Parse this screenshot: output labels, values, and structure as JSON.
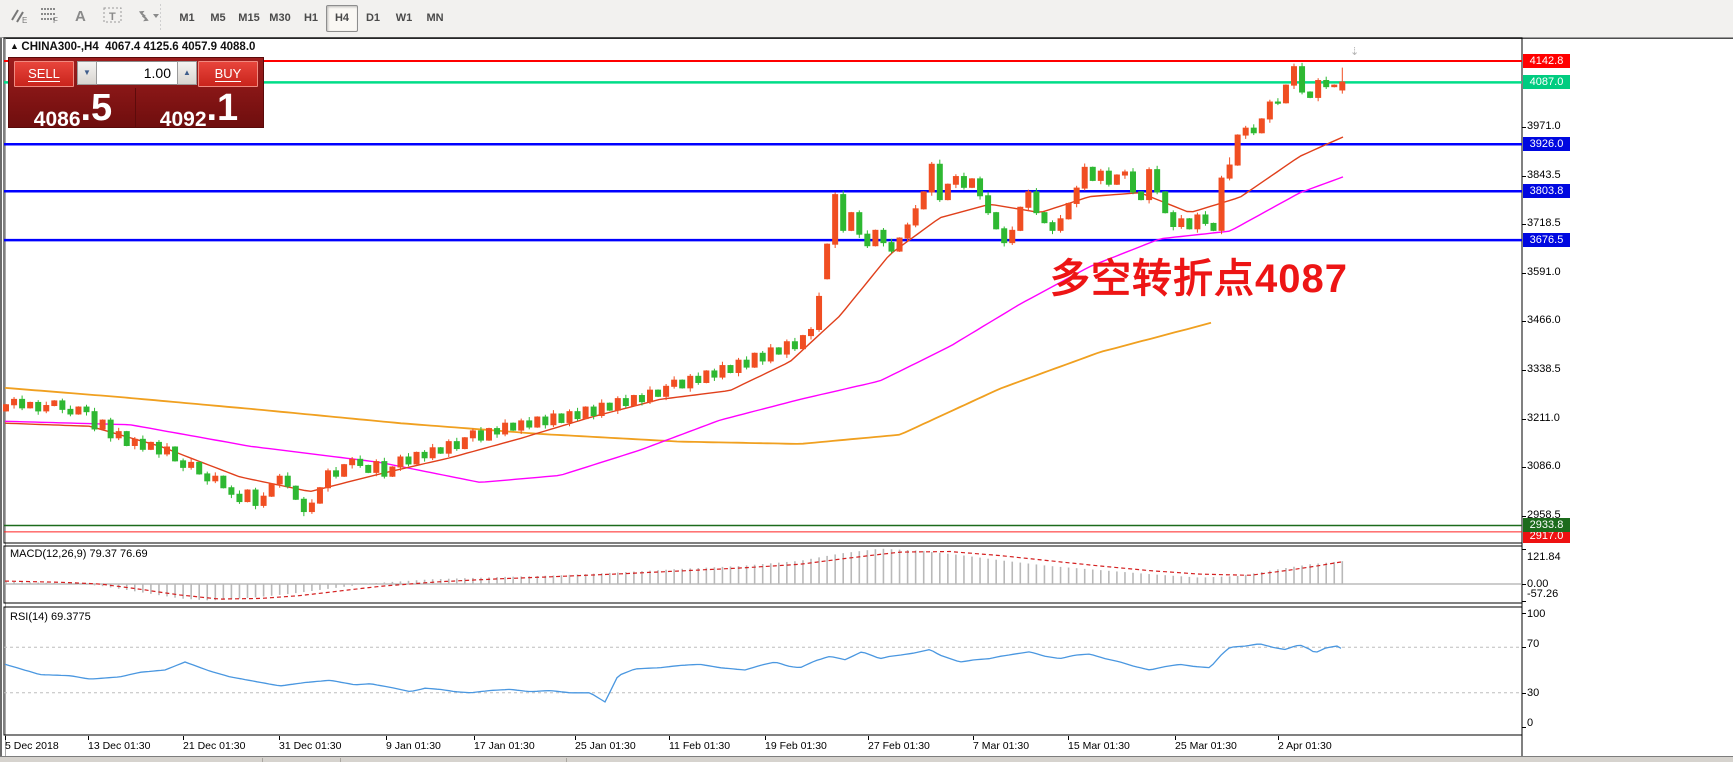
{
  "toolbar": {
    "icons": [
      {
        "name": "indicators-e-icon",
        "key": "ind"
      },
      {
        "name": "grid-f-icon",
        "key": "grid"
      },
      {
        "name": "text-label-icon",
        "key": "A"
      },
      {
        "name": "textbox-icon",
        "key": "T"
      },
      {
        "name": "cursor-arrows-icon",
        "key": "arr"
      }
    ],
    "timeframes": [
      {
        "label": "M1",
        "active": false
      },
      {
        "label": "M5",
        "active": false
      },
      {
        "label": "M15",
        "active": false
      },
      {
        "label": "M30",
        "active": false
      },
      {
        "label": "H1",
        "active": false
      },
      {
        "label": "H4",
        "active": true
      },
      {
        "label": "D1",
        "active": false
      },
      {
        "label": "W1",
        "active": false
      },
      {
        "label": "MN",
        "active": false
      }
    ]
  },
  "chart": {
    "title": "CHINA300-,H4  4067.4 4125.6 4057.9 4088.0",
    "symbol": "CHINA300-",
    "period": "H4",
    "open": "4067.4",
    "high": "4125.6",
    "low": "4057.9",
    "close": "4088.0"
  },
  "trade_panel": {
    "sell_label": "SELL",
    "buy_label": "BUY",
    "volume": "1.00",
    "sell_price_main": "4086",
    "sell_price_big": ".5",
    "buy_price_main": "4092",
    "buy_price_big": ".1"
  },
  "annotation": {
    "text": "多空转折点4087",
    "color": "#ed1515"
  },
  "macd_panel": {
    "label": "MACD(12,26,9) 79.37 76.69",
    "axis_labels": [
      "121.84",
      "0.00",
      "-57.26"
    ]
  },
  "rsi_panel": {
    "label": "RSI(14) 69.3775",
    "axis_labels": [
      "100",
      "70",
      "30",
      "0"
    ]
  },
  "chart_data": {
    "type": "candlestick",
    "symbol": "CHINA300- H4",
    "price_axis_ticks": [
      3971.0,
      3843.5,
      3718.5,
      3591.0,
      3466.0,
      3338.5,
      3211.0,
      3086.0,
      2958.5
    ],
    "hlines": [
      {
        "price": 4142.8,
        "color": "#ff0000",
        "w": 2,
        "badge": "#ff0000"
      },
      {
        "price": 4087.0,
        "color": "#00dd88",
        "w": 2.5,
        "badge": "#00cc80"
      },
      {
        "price": 3926.0,
        "color": "#0000ff",
        "w": 2.5,
        "badge": "#0008e0"
      },
      {
        "price": 3803.8,
        "color": "#0000ff",
        "w": 2.5,
        "badge": "#0008e0"
      },
      {
        "price": 3676.5,
        "color": "#0000ff",
        "w": 2.5,
        "badge": "#0008e0"
      },
      {
        "price": 2933.8,
        "color": "#1c6b1c",
        "w": 1.5,
        "badge": "#1c6b1c"
      },
      {
        "price": 2917.0,
        "color": "#ff2020",
        "w": 1,
        "badge": "#ee1111"
      }
    ],
    "dates": [
      "5 Dec 2018",
      "13 Dec 01:30",
      "21 Dec 01:30",
      "31 Dec 01:30",
      "9 Jan 01:30",
      "17 Jan 01:30",
      "25 Jan 01:30",
      "11 Feb 01:30",
      "19 Feb 01:30",
      "27 Feb 01:30",
      "7 Mar 01:30",
      "15 Mar 01:30",
      "25 Mar 01:30",
      "2 Apr 01:30"
    ],
    "date_x": [
      5,
      88,
      183,
      279,
      386,
      474,
      575,
      669,
      765,
      868,
      973,
      1068,
      1175,
      1278
    ],
    "first_open": 3232,
    "closes": [
      3248,
      3262,
      3240,
      3254,
      3232,
      3246,
      3258,
      3236,
      3224,
      3242,
      3230,
      3185,
      3208,
      3162,
      3178,
      3142,
      3158,
      3132,
      3150,
      3120,
      3138,
      3102,
      3085,
      3098,
      3068,
      3050,
      3062,
      3032,
      3015,
      2996,
      3026,
      2986,
      3010,
      3042,
      3062,
      3036,
      3002,
      2970,
      2992,
      3032,
      3076,
      3062,
      3092,
      3106,
      3090,
      3072,
      3100,
      3062,
      3086,
      3112,
      3094,
      3124,
      3110,
      3136,
      3122,
      3152,
      3134,
      3162,
      3180,
      3156,
      3186,
      3172,
      3200,
      3182,
      3206,
      3190,
      3216,
      3196,
      3224,
      3202,
      3230,
      3212,
      3242,
      3220,
      3252,
      3234,
      3264,
      3246,
      3272,
      3256,
      3286,
      3270,
      3296,
      3312,
      3292,
      3322,
      3306,
      3336,
      3320,
      3350,
      3332,
      3364,
      3346,
      3382,
      3362,
      3396,
      3380,
      3412,
      3394,
      3428,
      3444,
      3530,
      3666,
      3795,
      3702,
      3748,
      3692,
      3662,
      3702,
      3670,
      3648,
      3682,
      3716,
      3758,
      3802,
      3874,
      3782,
      3822,
      3842,
      3814,
      3836,
      3792,
      3748,
      3706,
      3670,
      3702,
      3762,
      3802,
      3748,
      3722,
      3702,
      3732,
      3772,
      3812,
      3866,
      3832,
      3856,
      3822,
      3846,
      3854,
      3802,
      3782,
      3860,
      3802,
      3748,
      3712,
      3732,
      3706,
      3742,
      3720,
      3702,
      3838,
      3872,
      3950,
      3968,
      3956,
      3992,
      4036,
      4034,
      4080,
      4128,
      4062,
      4048,
      4092,
      4076,
      4080,
      4088
    ],
    "special_bars": {
      "37": {
        "low": 2958
      },
      "102": {
        "open": 3576
      },
      "116": {
        "high": 3886
      },
      "152": {
        "high": 3892
      },
      "160": {
        "high": 4136
      },
      "166": {
        "open": 4067.4,
        "high": 4125.6,
        "low": 4057.9,
        "close": 4088.0
      }
    },
    "ma_fast": {
      "color": "#e0401c",
      "points": [
        [
          5,
          3200
        ],
        [
          90,
          3192
        ],
        [
          160,
          3140
        ],
        [
          240,
          3060
        ],
        [
          310,
          3022
        ],
        [
          380,
          3068
        ],
        [
          450,
          3110
        ],
        [
          520,
          3160
        ],
        [
          590,
          3215
        ],
        [
          660,
          3262
        ],
        [
          730,
          3285
        ],
        [
          790,
          3360
        ],
        [
          840,
          3480
        ],
        [
          890,
          3640
        ],
        [
          940,
          3735
        ],
        [
          990,
          3770
        ],
        [
          1040,
          3748
        ],
        [
          1090,
          3790
        ],
        [
          1140,
          3800
        ],
        [
          1190,
          3748
        ],
        [
          1240,
          3788
        ],
        [
          1300,
          3895
        ],
        [
          1343,
          3945
        ]
      ]
    },
    "ma_mid": {
      "color": "#ff00ff",
      "points": [
        [
          5,
          3205
        ],
        [
          130,
          3196
        ],
        [
          250,
          3140
        ],
        [
          380,
          3098
        ],
        [
          480,
          3046
        ],
        [
          560,
          3064
        ],
        [
          640,
          3130
        ],
        [
          720,
          3208
        ],
        [
          800,
          3262
        ],
        [
          880,
          3310
        ],
        [
          950,
          3400
        ],
        [
          1020,
          3510
        ],
        [
          1090,
          3608
        ],
        [
          1160,
          3680
        ],
        [
          1230,
          3700
        ],
        [
          1300,
          3800
        ],
        [
          1343,
          3841
        ]
      ]
    },
    "ma_slow": {
      "color": "#f0a020",
      "points": [
        [
          5,
          3292
        ],
        [
          120,
          3268
        ],
        [
          260,
          3235
        ],
        [
          400,
          3200
        ],
        [
          540,
          3172
        ],
        [
          680,
          3152
        ],
        [
          800,
          3146
        ],
        [
          900,
          3170
        ],
        [
          1000,
          3290
        ],
        [
          1100,
          3385
        ],
        [
          1215,
          3464
        ]
      ]
    },
    "macd": {
      "label_values": [
        79.37,
        76.69
      ],
      "axis": {
        "max": 121.84,
        "zero": 0.0,
        "min": -57.26
      },
      "hist_points": [
        [
          5,
          8
        ],
        [
          60,
          3
        ],
        [
          100,
          -6
        ],
        [
          140,
          -28
        ],
        [
          180,
          -50
        ],
        [
          210,
          -57
        ],
        [
          250,
          -48
        ],
        [
          290,
          -34
        ],
        [
          330,
          -16
        ],
        [
          370,
          2
        ],
        [
          430,
          16
        ],
        [
          500,
          24
        ],
        [
          560,
          30
        ],
        [
          620,
          40
        ],
        [
          680,
          52
        ],
        [
          740,
          62
        ],
        [
          800,
          80
        ],
        [
          840,
          105
        ],
        [
          880,
          122
        ],
        [
          920,
          115
        ],
        [
          960,
          100
        ],
        [
          1000,
          82
        ],
        [
          1050,
          62
        ],
        [
          1100,
          48
        ],
        [
          1150,
          34
        ],
        [
          1200,
          22
        ],
        [
          1240,
          28
        ],
        [
          1280,
          52
        ],
        [
          1310,
          68
        ],
        [
          1343,
          79
        ]
      ],
      "signal_points": [
        [
          5,
          10
        ],
        [
          60,
          6
        ],
        [
          100,
          0
        ],
        [
          140,
          -18
        ],
        [
          180,
          -38
        ],
        [
          220,
          -52
        ],
        [
          260,
          -50
        ],
        [
          300,
          -40
        ],
        [
          340,
          -24
        ],
        [
          380,
          -8
        ],
        [
          440,
          8
        ],
        [
          500,
          18
        ],
        [
          560,
          26
        ],
        [
          620,
          35
        ],
        [
          680,
          45
        ],
        [
          740,
          55
        ],
        [
          800,
          68
        ],
        [
          850,
          90
        ],
        [
          900,
          110
        ],
        [
          950,
          112
        ],
        [
          1000,
          98
        ],
        [
          1050,
          80
        ],
        [
          1100,
          62
        ],
        [
          1150,
          46
        ],
        [
          1200,
          34
        ],
        [
          1250,
          30
        ],
        [
          1290,
          48
        ],
        [
          1320,
          64
        ],
        [
          1343,
          77
        ]
      ]
    },
    "rsi": {
      "value": 69.3775,
      "levels": [
        70,
        30
      ],
      "points": [
        [
          5,
          55
        ],
        [
          40,
          46
        ],
        [
          70,
          45
        ],
        [
          90,
          42
        ],
        [
          120,
          44
        ],
        [
          140,
          48
        ],
        [
          165,
          50
        ],
        [
          185,
          57
        ],
        [
          210,
          49
        ],
        [
          230,
          44
        ],
        [
          255,
          40
        ],
        [
          280,
          36
        ],
        [
          305,
          39
        ],
        [
          330,
          41
        ],
        [
          355,
          37
        ],
        [
          370,
          38
        ],
        [
          395,
          34
        ],
        [
          410,
          31
        ],
        [
          425,
          34
        ],
        [
          440,
          33
        ],
        [
          455,
          31
        ],
        [
          470,
          30
        ],
        [
          490,
          32
        ],
        [
          510,
          33
        ],
        [
          530,
          31
        ],
        [
          550,
          32
        ],
        [
          570,
          30
        ],
        [
          590,
          30
        ],
        [
          605,
          22
        ],
        [
          618,
          45
        ],
        [
          635,
          51
        ],
        [
          660,
          52
        ],
        [
          680,
          54
        ],
        [
          700,
          55
        ],
        [
          720,
          52
        ],
        [
          745,
          50
        ],
        [
          760,
          54
        ],
        [
          775,
          57
        ],
        [
          790,
          53
        ],
        [
          800,
          52
        ],
        [
          815,
          58
        ],
        [
          830,
          62
        ],
        [
          845,
          59
        ],
        [
          862,
          66
        ],
        [
          880,
          60
        ],
        [
          890,
          62
        ],
        [
          900,
          63
        ],
        [
          915,
          65
        ],
        [
          930,
          68
        ],
        [
          940,
          63
        ],
        [
          950,
          60
        ],
        [
          960,
          57
        ],
        [
          975,
          59
        ],
        [
          990,
          60
        ],
        [
          1000,
          62
        ],
        [
          1015,
          64
        ],
        [
          1030,
          66
        ],
        [
          1045,
          62
        ],
        [
          1060,
          60
        ],
        [
          1075,
          63
        ],
        [
          1090,
          64
        ],
        [
          1105,
          60
        ],
        [
          1120,
          57
        ],
        [
          1135,
          53
        ],
        [
          1150,
          50
        ],
        [
          1165,
          53
        ],
        [
          1180,
          55
        ],
        [
          1195,
          53
        ],
        [
          1210,
          52
        ],
        [
          1222,
          64
        ],
        [
          1230,
          70
        ],
        [
          1245,
          71
        ],
        [
          1260,
          73
        ],
        [
          1272,
          70
        ],
        [
          1285,
          68
        ],
        [
          1295,
          71
        ],
        [
          1300,
          72
        ],
        [
          1310,
          68
        ],
        [
          1315,
          65
        ],
        [
          1325,
          69
        ],
        [
          1330,
          70
        ],
        [
          1337,
          71
        ],
        [
          1343,
          68
        ]
      ]
    }
  }
}
